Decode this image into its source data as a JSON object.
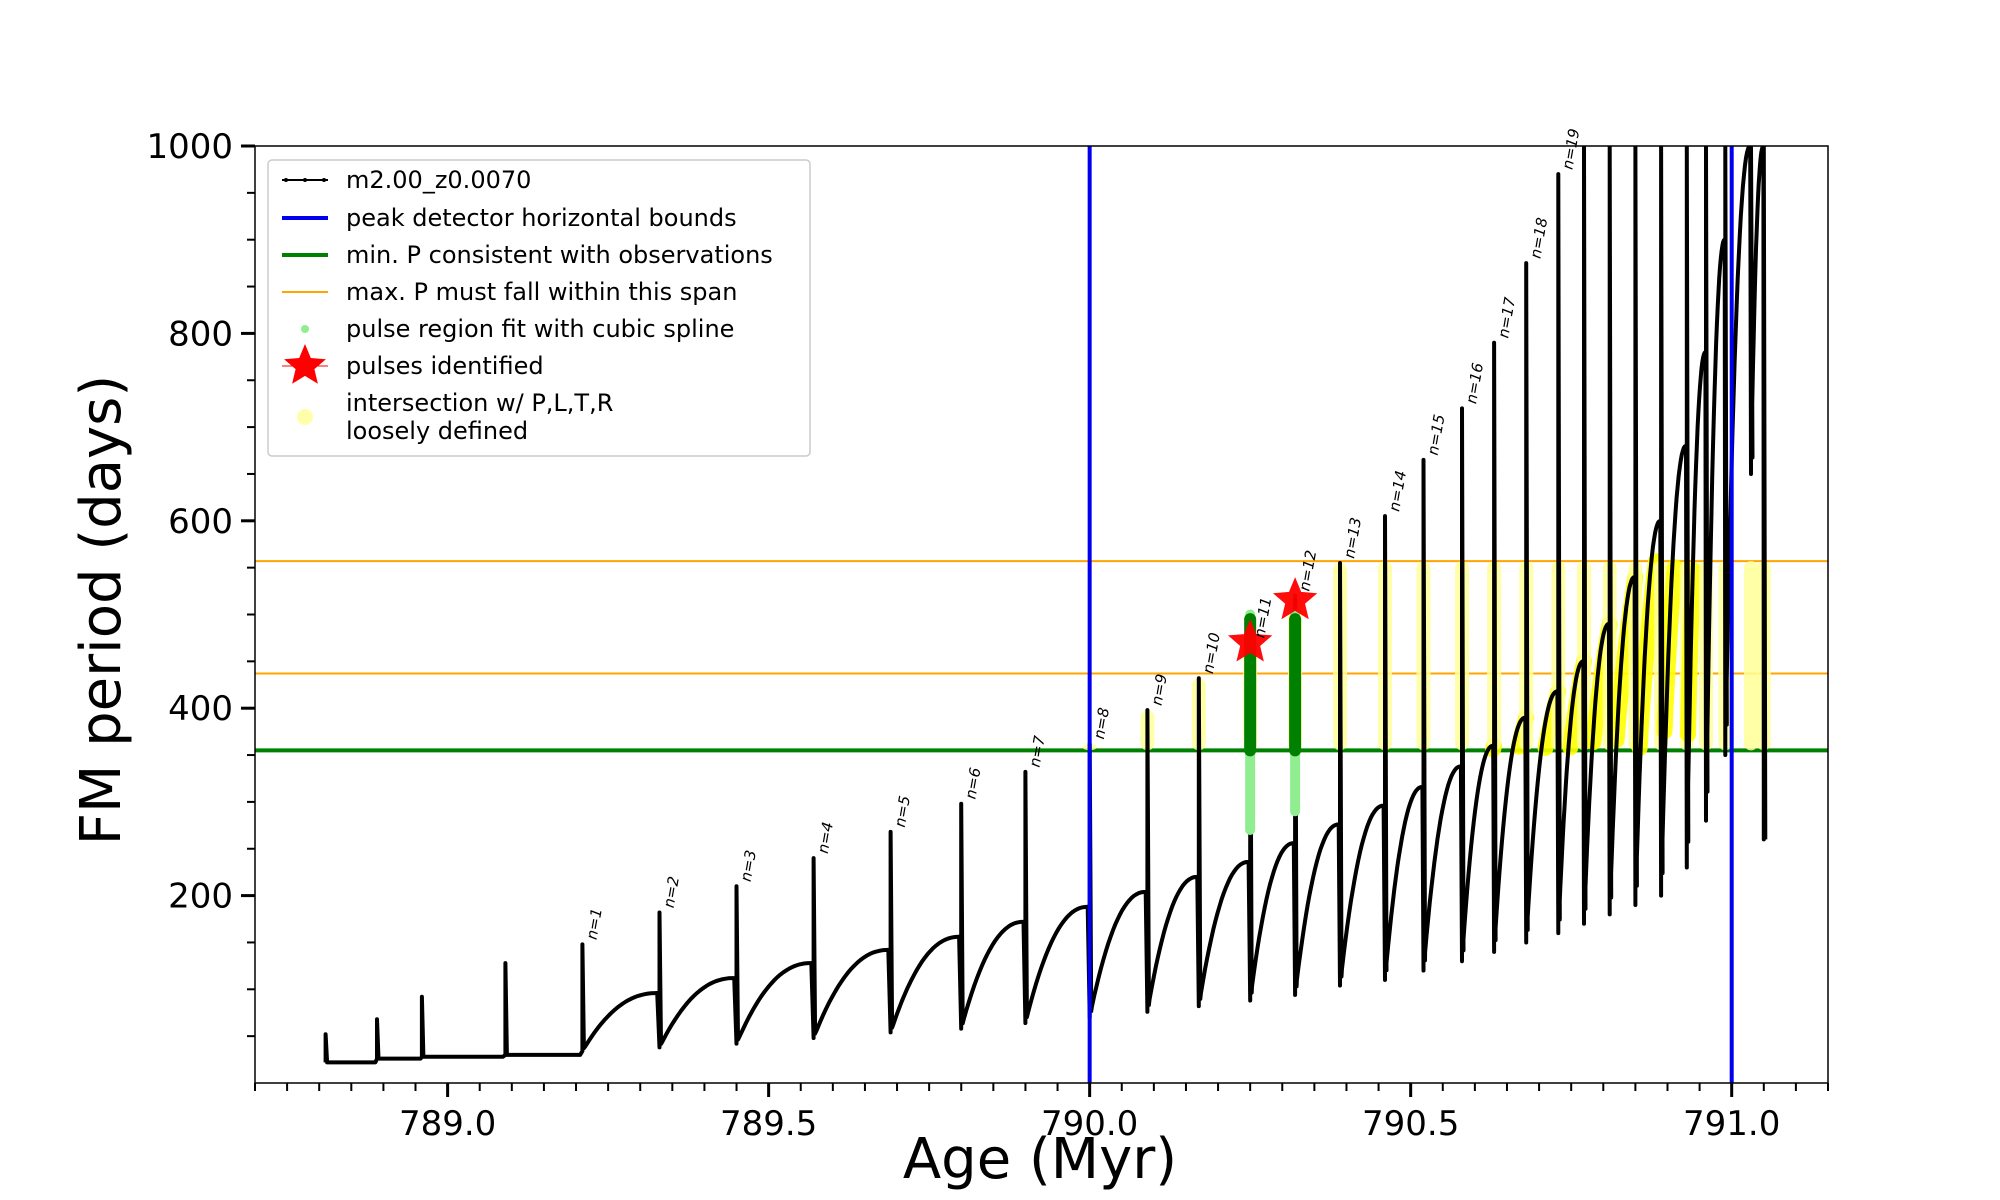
{
  "chart_data": {
    "type": "line",
    "title": "",
    "xlabel": "Age (Myr)",
    "ylabel": "FM period (days)",
    "xlim": [
      788.7,
      791.15
    ],
    "ylim": [
      0,
      1000
    ],
    "x_ticks": [
      789.0,
      789.5,
      790.0,
      790.5,
      791.0
    ],
    "x_tick_labels": [
      "789.0",
      "789.5",
      "790.0",
      "790.5",
      "791.0"
    ],
    "y_ticks": [
      200,
      400,
      600,
      800,
      1000
    ],
    "y_tick_labels": [
      "200",
      "400",
      "600",
      "800",
      "1000"
    ],
    "grid": false,
    "legend_position": "top-left",
    "legend": [
      {
        "label": "m2.00_z0.0070",
        "kind": "line-marker",
        "color": "#000000"
      },
      {
        "label": "peak detector horizontal bounds",
        "kind": "line",
        "color": "#0000ee"
      },
      {
        "label": "min. P consistent with observations",
        "kind": "line",
        "color": "#008000"
      },
      {
        "label": "max. P must fall within this span",
        "kind": "thin-line",
        "color": "#ffa500"
      },
      {
        "label": "pulse region fit with cubic spline",
        "kind": "dot",
        "color": "#90ee90"
      },
      {
        "label": "pulses identified",
        "kind": "star",
        "color": "#ff0000"
      },
      {
        "label": "intersection w/ P,L,T,R",
        "kind": "circle",
        "color": "#ffffaa"
      },
      {
        "label": "loosely defined",
        "kind": "text-only",
        "color": "#000000"
      }
    ],
    "vertical_bounds": [
      790.0,
      791.0
    ],
    "min_period": 355,
    "max_period_span": [
      437,
      557
    ],
    "series_color": "#000000",
    "pulses": [
      {
        "label": "",
        "t": 788.81,
        "base": 22,
        "peak": 52,
        "end": 22
      },
      {
        "label": "",
        "t": 788.89,
        "base": 26,
        "peak": 68,
        "end": 26
      },
      {
        "label": "",
        "t": 788.96,
        "base": 28,
        "peak": 92,
        "end": 28
      },
      {
        "label": "",
        "t": 789.09,
        "base": 30,
        "peak": 128,
        "end": 30
      },
      {
        "label": "n=1",
        "t": 789.21,
        "base": 34,
        "peak": 148,
        "end": 96
      },
      {
        "label": "n=2",
        "t": 789.33,
        "base": 38,
        "peak": 182,
        "end": 112
      },
      {
        "label": "n=3",
        "t": 789.45,
        "base": 42,
        "peak": 210,
        "end": 128
      },
      {
        "label": "n=4",
        "t": 789.57,
        "base": 48,
        "peak": 240,
        "end": 142
      },
      {
        "label": "n=5",
        "t": 789.69,
        "base": 54,
        "peak": 268,
        "end": 156
      },
      {
        "label": "n=6",
        "t": 789.8,
        "base": 58,
        "peak": 298,
        "end": 172
      },
      {
        "label": "n=7",
        "t": 789.9,
        "base": 64,
        "peak": 332,
        "end": 188
      },
      {
        "label": "n=8",
        "t": 790.0,
        "base": 70,
        "peak": 362,
        "end": 204
      },
      {
        "label": "n=9",
        "t": 790.09,
        "base": 76,
        "peak": 398,
        "end": 220
      },
      {
        "label": "n=10",
        "t": 790.17,
        "base": 82,
        "peak": 432,
        "end": 236
      },
      {
        "label": "n=11",
        "t": 790.25,
        "base": 88,
        "peak": 470,
        "end": 256
      },
      {
        "label": "n=12",
        "t": 790.32,
        "base": 94,
        "peak": 520,
        "end": 276
      },
      {
        "label": "n=13",
        "t": 790.39,
        "base": 104,
        "peak": 555,
        "end": 296
      },
      {
        "label": "n=14",
        "t": 790.46,
        "base": 110,
        "peak": 605,
        "end": 316
      },
      {
        "label": "n=15",
        "t": 790.52,
        "base": 120,
        "peak": 665,
        "end": 338
      },
      {
        "label": "n=16",
        "t": 790.58,
        "base": 130,
        "peak": 720,
        "end": 360
      },
      {
        "label": "n=17",
        "t": 790.63,
        "base": 140,
        "peak": 790,
        "end": 390
      },
      {
        "label": "n=18",
        "t": 790.68,
        "base": 150,
        "peak": 875,
        "end": 418
      },
      {
        "label": "n=19",
        "t": 790.73,
        "base": 160,
        "peak": 970,
        "end": 450
      },
      {
        "label": "",
        "t": 790.77,
        "base": 170,
        "peak": 1000,
        "end": 490
      },
      {
        "label": "",
        "t": 790.81,
        "base": 180,
        "peak": 1000,
        "end": 540
      },
      {
        "label": "",
        "t": 790.85,
        "base": 190,
        "peak": 1000,
        "end": 600
      },
      {
        "label": "",
        "t": 790.89,
        "base": 200,
        "peak": 1000,
        "end": 680
      },
      {
        "label": "",
        "t": 790.93,
        "base": 230,
        "peak": 1000,
        "end": 780
      },
      {
        "label": "",
        "t": 790.96,
        "base": 280,
        "peak": 1000,
        "end": 900
      },
      {
        "label": "",
        "t": 790.99,
        "base": 350,
        "peak": 1000,
        "end": 1000
      },
      {
        "label": "",
        "t": 791.03,
        "base": 650,
        "peak": 1000,
        "end": 1000
      },
      {
        "label": "",
        "t": 791.05,
        "base": 260,
        "peak": 1000,
        "end": 260
      }
    ],
    "fit_regions": [
      {
        "t": 790.25,
        "lo": 270,
        "hi": 500,
        "obs_lo": 355,
        "obs_hi": 495
      },
      {
        "t": 790.32,
        "lo": 290,
        "hi": 500,
        "obs_lo": 355,
        "obs_hi": 495
      }
    ],
    "identified_pulses": [
      {
        "t": 790.25,
        "p": 470
      },
      {
        "t": 790.32,
        "p": 515
      }
    ]
  }
}
